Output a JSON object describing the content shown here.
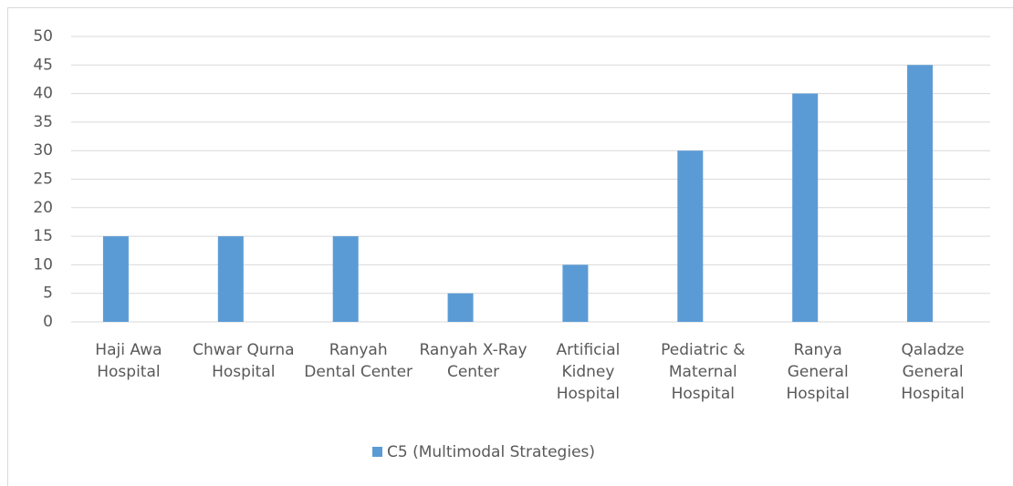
{
  "chart_data": {
    "type": "bar",
    "categories": [
      "Haji Awa Hospital",
      "Chwar Qurna Hospital",
      "Ranyah Dental Center",
      "Ranyah X-Ray Center",
      "Artificial Kidney Hospital",
      "Pediatric & Maternal Hospital",
      "Ranya General Hospital",
      "Qaladze General Hospital"
    ],
    "series": [
      {
        "name": "C5 (Multimodal Strategies)",
        "color": "#5b9bd5",
        "values": [
          15,
          15,
          15,
          5,
          10,
          30,
          40,
          45
        ]
      }
    ],
    "ylim": [
      0,
      50
    ],
    "yticks": [
      0,
      5,
      10,
      15,
      20,
      25,
      30,
      35,
      40,
      45,
      50
    ],
    "grid": true,
    "legend": "bottom"
  }
}
